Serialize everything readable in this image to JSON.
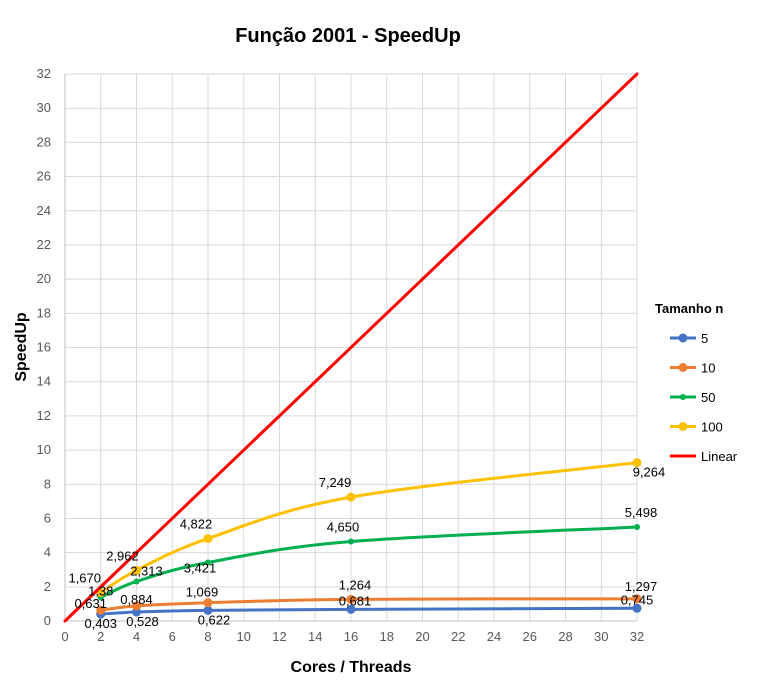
{
  "chart_data": {
    "type": "line",
    "title": "Função 2001 - SpeedUp",
    "xlabel": "Cores / Threads",
    "ylabel": "SpeedUp",
    "xlim": [
      0,
      32
    ],
    "ylim": [
      0,
      32
    ],
    "x_ticks": [
      "0",
      "2",
      "4",
      "6",
      "8",
      "10",
      "12",
      "14",
      "16",
      "18",
      "20",
      "22",
      "24",
      "26",
      "28",
      "30",
      "32"
    ],
    "y_ticks": [
      "0",
      "2",
      "4",
      "6",
      "8",
      "10",
      "12",
      "14",
      "16",
      "18",
      "20",
      "22",
      "24",
      "26",
      "28",
      "30",
      "32"
    ],
    "grid": true,
    "legend_title": "Tamanho n",
    "legend_position": "right",
    "series": [
      {
        "name": "5",
        "color": "#4472C4",
        "marker": "circle",
        "points": [
          [
            2,
            0.403
          ],
          [
            4,
            0.528
          ],
          [
            8,
            0.622
          ],
          [
            16,
            0.681
          ],
          [
            32,
            0.745
          ]
        ],
        "labels": [
          "0,403",
          "0,528",
          "0,622",
          "0,681",
          "0,745"
        ]
      },
      {
        "name": "10",
        "color": "#ED7D31",
        "marker": "circle",
        "points": [
          [
            2,
            0.631
          ],
          [
            4,
            0.884
          ],
          [
            8,
            1.069
          ],
          [
            16,
            1.264
          ],
          [
            32,
            1.297
          ]
        ],
        "labels": [
          "0,631",
          "0,884",
          "1,069",
          "1,264",
          "1,297"
        ]
      },
      {
        "name": "50",
        "color": "#00B050",
        "marker": "circle",
        "points": [
          [
            2,
            1.38
          ],
          [
            4,
            2.313
          ],
          [
            8,
            3.421
          ],
          [
            16,
            4.65
          ],
          [
            32,
            5.498
          ]
        ],
        "labels": [
          "1,38",
          "2,313",
          "3,421",
          "4,650",
          "5,498"
        ]
      },
      {
        "name": "100",
        "color": "#FFC000",
        "marker": "circle",
        "points": [
          [
            2,
            1.67
          ],
          [
            4,
            2.962
          ],
          [
            8,
            4.822
          ],
          [
            16,
            7.249
          ],
          [
            32,
            9.264
          ]
        ],
        "labels": [
          "1,670",
          "2,962",
          "4,822",
          "7,249",
          "9,264"
        ]
      },
      {
        "name": "Linear",
        "color": "#FF0000",
        "marker": "none",
        "points": [
          [
            0,
            0
          ],
          [
            32,
            32
          ]
        ],
        "labels": []
      }
    ]
  }
}
